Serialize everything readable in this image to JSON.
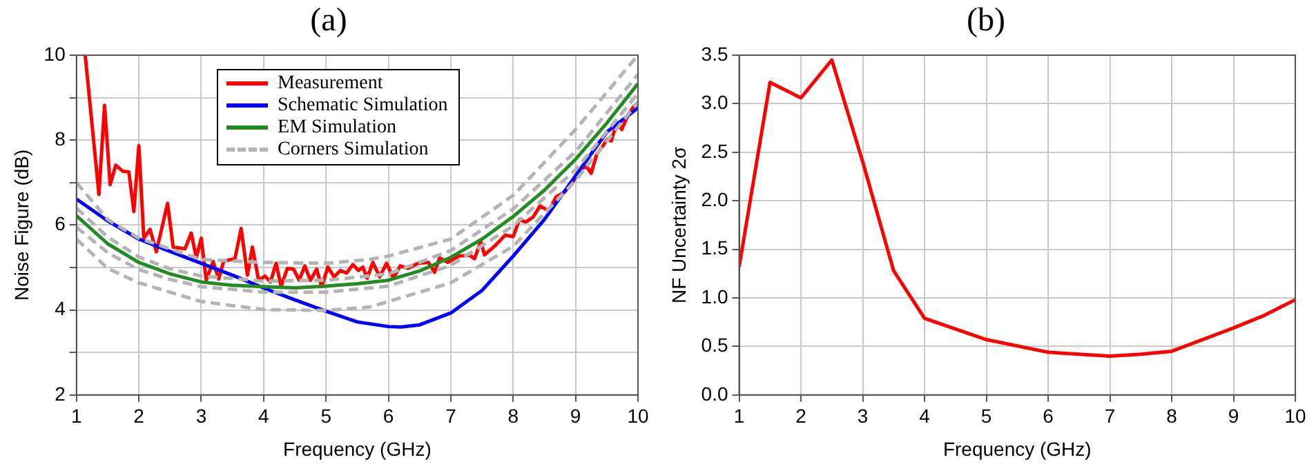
{
  "chart_data": [
    {
      "type": "line",
      "title": "(a)",
      "xlabel": "Frequency (GHz)",
      "ylabel": "Noise Figure (dB)",
      "xlim": [
        1,
        10
      ],
      "ylim": [
        2,
        10
      ],
      "xticks": [
        1,
        2,
        3,
        4,
        5,
        6,
        7,
        8,
        9,
        10
      ],
      "yticks": [
        2,
        {
          "value": 3,
          "label": null
        },
        4,
        {
          "value": 5,
          "label": null
        },
        6,
        {
          "value": 7,
          "label": null
        },
        8,
        {
          "value": 9,
          "label": null
        },
        10
      ],
      "grid": true,
      "legend": "top",
      "marker": "none",
      "series": [
        {
          "name": "Measurement",
          "color": "#ff0000",
          "line_style": "solid",
          "x": [
            1.14,
            1.36,
            1.45,
            1.54,
            1.63,
            1.74,
            1.84,
            1.92,
            2.0,
            2.08,
            2.18,
            2.28,
            2.46,
            2.55,
            2.74,
            2.84,
            2.92,
            3.0,
            3.08,
            3.19,
            3.28,
            3.36,
            3.54,
            3.64,
            3.74,
            3.82,
            3.92,
            4.02,
            4.11,
            4.2,
            4.28,
            4.38,
            4.48,
            4.57,
            4.66,
            4.75,
            4.85,
            4.93,
            5.03,
            5.13,
            5.23,
            5.33,
            5.43,
            5.52,
            5.59,
            5.66,
            5.75,
            5.86,
            5.97,
            6.08,
            6.19,
            6.31,
            6.48,
            6.64,
            6.74,
            6.82,
            6.95,
            7.13,
            7.3,
            7.38,
            7.48,
            7.54,
            7.7,
            7.87,
            8.0,
            8.1,
            8.2,
            8.32,
            8.43,
            8.57,
            8.69,
            8.81,
            8.93,
            9.08,
            9.18,
            9.25,
            9.34,
            9.43,
            9.51,
            9.57,
            9.66,
            9.74,
            9.84,
            9.93,
            10
          ],
          "values": [
            10.0,
            6.72,
            8.82,
            6.95,
            7.41,
            7.27,
            7.25,
            6.32,
            7.87,
            5.69,
            5.9,
            5.37,
            6.51,
            5.48,
            5.44,
            5.81,
            5.23,
            5.69,
            4.7,
            5.14,
            4.73,
            5.15,
            5.21,
            5.92,
            4.82,
            5.48,
            4.7,
            4.8,
            4.66,
            5.1,
            4.55,
            4.98,
            4.96,
            4.7,
            5.04,
            4.7,
            4.96,
            4.55,
            5.01,
            4.78,
            4.93,
            4.87,
            5.07,
            4.93,
            5.01,
            4.75,
            5.12,
            4.78,
            5.1,
            4.75,
            5.04,
            4.98,
            5.1,
            5.12,
            4.89,
            5.23,
            5.12,
            5.27,
            5.29,
            5.21,
            5.61,
            5.3,
            5.5,
            5.76,
            5.73,
            6.13,
            6.07,
            6.19,
            6.45,
            6.33,
            6.67,
            6.76,
            6.95,
            7.33,
            7.37,
            7.22,
            7.67,
            7.85,
            8.02,
            7.98,
            8.4,
            8.25,
            8.59,
            8.79,
            8.88
          ]
        },
        {
          "name": "Schematic Simulation",
          "color": "#0000ff",
          "line_style": "solid",
          "x": [
            1,
            1.5,
            2,
            2.5,
            3,
            3.5,
            4,
            4.5,
            5,
            5.5,
            6,
            6.2,
            6.5,
            7,
            7.5,
            8,
            8.5,
            9,
            9.5,
            10
          ],
          "values": [
            6.61,
            6.1,
            5.67,
            5.38,
            5.1,
            4.82,
            4.52,
            4.24,
            3.97,
            3.72,
            3.61,
            3.6,
            3.65,
            3.93,
            4.46,
            5.27,
            6.13,
            7.16,
            8.19,
            8.76
          ]
        },
        {
          "name": "EM Simulation",
          "color": "#228b22",
          "line_style": "solid",
          "x": [
            1,
            1.5,
            2,
            2.5,
            3,
            3.5,
            4,
            4.5,
            5,
            5.5,
            6,
            6.5,
            7,
            7.5,
            8,
            8.5,
            9,
            9.5,
            10
          ],
          "values": [
            6.22,
            5.56,
            5.12,
            4.85,
            4.66,
            4.58,
            4.55,
            4.52,
            4.56,
            4.62,
            4.7,
            4.92,
            5.24,
            5.67,
            6.2,
            6.82,
            7.55,
            8.4,
            9.33
          ]
        },
        {
          "name": "Corners Simulation",
          "color": "#b4b4b4",
          "line_style": "dashed",
          "x": [
            1,
            1.5,
            2,
            3,
            4,
            5,
            5.7,
            6,
            7,
            8,
            9,
            10
          ],
          "values": [
            7.0,
            6.13,
            5.69,
            5.19,
            5.12,
            5.1,
            5.19,
            5.27,
            5.67,
            6.7,
            8.25,
            10.0
          ]
        },
        {
          "color": "#b4b4b4",
          "line_style": "dashed",
          "x": [
            1,
            1.5,
            2,
            2.5,
            3,
            4,
            5,
            6,
            7,
            8,
            9,
            10
          ],
          "values": [
            6.4,
            5.72,
            5.25,
            4.97,
            4.8,
            4.68,
            4.7,
            4.85,
            5.4,
            6.38,
            7.73,
            9.55
          ]
        },
        {
          "color": "#b4b4b4",
          "line_style": "dashed",
          "x": [
            1,
            1.5,
            2,
            2.5,
            3,
            4,
            5,
            6,
            7,
            8,
            9,
            10
          ],
          "values": [
            5.95,
            5.35,
            4.95,
            4.72,
            4.55,
            4.42,
            4.42,
            4.56,
            5.05,
            5.98,
            7.3,
            9.1
          ]
        },
        {
          "color": "#b4b4b4",
          "line_style": "dashed",
          "x": [
            1,
            1.5,
            2,
            3,
            4,
            5,
            5.7,
            6,
            7,
            8,
            9,
            10
          ],
          "values": [
            5.67,
            4.98,
            4.64,
            4.2,
            4.01,
            3.99,
            4.07,
            4.2,
            4.64,
            5.5,
            7.05,
            8.9
          ]
        }
      ]
    },
    {
      "type": "line",
      "title": "(b)",
      "xlabel": "Frequency (GHz)",
      "ylabel": "NF Uncertainty 2σ",
      "xlim": [
        1,
        10
      ],
      "ylim": [
        0,
        3.5
      ],
      "xticks": [
        1,
        2,
        3,
        4,
        5,
        6,
        7,
        8,
        9,
        10
      ],
      "yticks": [
        {
          "value": 0,
          "label": "0.0"
        },
        0.5,
        {
          "value": 1,
          "label": "1.0"
        },
        1.5,
        {
          "value": 2,
          "label": "2.0"
        },
        2.5,
        {
          "value": 3,
          "label": "3.0"
        },
        3.5
      ],
      "grid": true,
      "marker": "none",
      "series": [
        {
          "color": "#ff0000",
          "line_style": "solid",
          "x": [
            1,
            1.5,
            2,
            2.5,
            3,
            3.5,
            4,
            5,
            6,
            6.5,
            7,
            7.5,
            8,
            9,
            9.5,
            10
          ],
          "values": [
            1.32,
            3.22,
            3.06,
            3.45,
            2.4,
            1.28,
            0.79,
            0.57,
            0.44,
            0.42,
            0.4,
            0.42,
            0.45,
            0.69,
            0.82,
            0.98
          ]
        }
      ]
    }
  ]
}
